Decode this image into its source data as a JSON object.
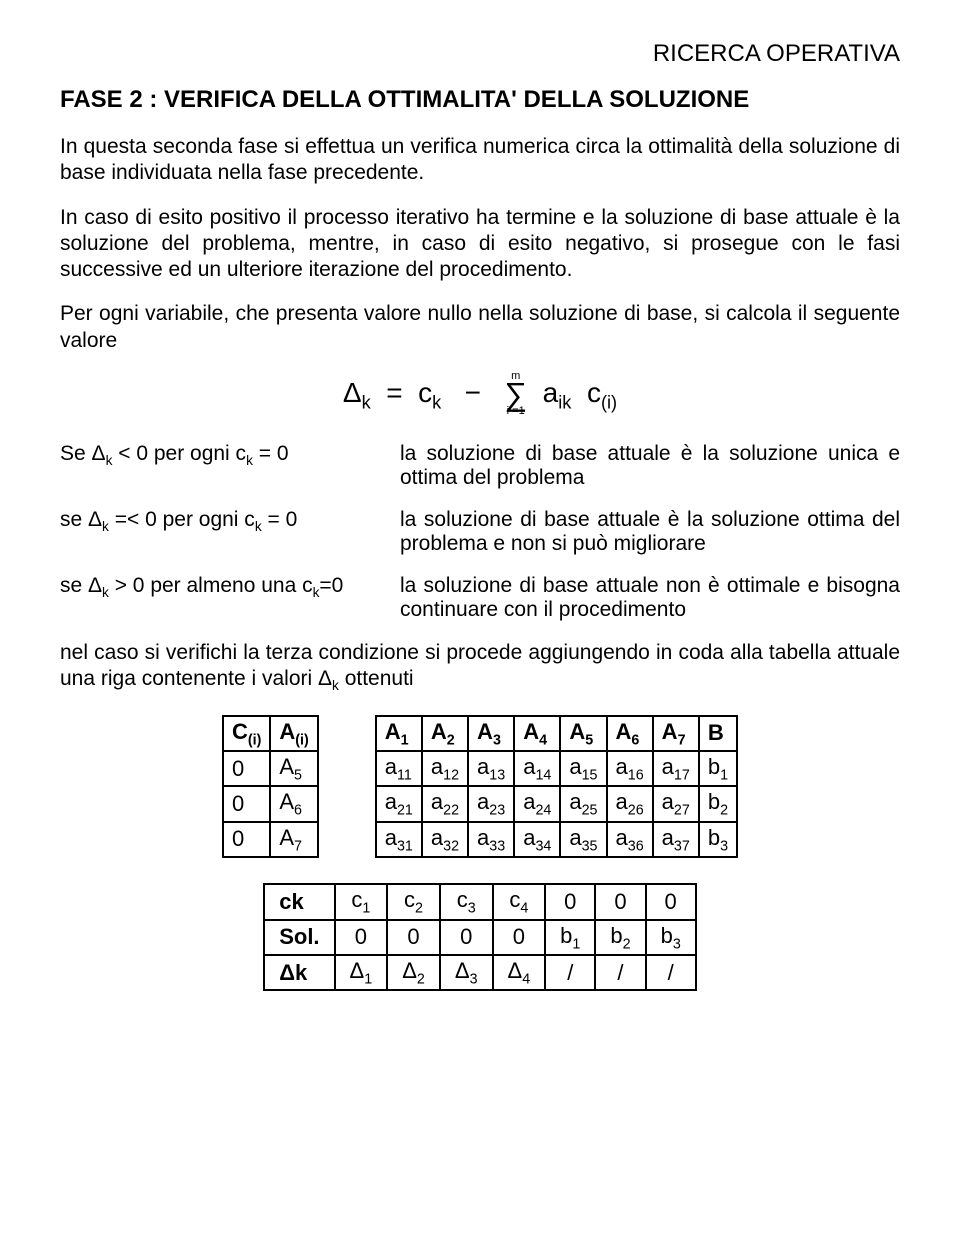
{
  "header": "RICERCA  OPERATIVA",
  "title": "FASE 2 :  VERIFICA  DELLA  OTTIMALITA'  DELLA   SOLUZIONE",
  "para1": "In questa seconda fase si effettua un verifica numerica circa la ottimalità della soluzione di base individuata nella fase precedente.",
  "para2": "In caso di esito positivo il processo iterativo ha termine e la soluzione di base attuale è la soluzione del problema, mentre, in caso di esito negativo, si prosegue con le fasi successive ed un ulteriore iterazione del procedimento.",
  "para3": "Per ogni variabile, che presenta valore nullo nella soluzione di base, si calcola il seguente valore",
  "formula": {
    "lhs": "Δ",
    "lhs_sub": "k",
    "eq": "=",
    "c": "c",
    "c_sub": "k",
    "minus": "−",
    "sum_top": "m",
    "sum_bot": "i =1",
    "a": "a",
    "a_sub": "ik",
    "ci": "c",
    "ci_sub": "(i)"
  },
  "cond1": {
    "left_pre": "Se   Δ",
    "left_sub": "k",
    "left_mid": " < 0   per  ogni  c",
    "left_sub2": "k",
    "left_post": " = 0",
    "right": "la soluzione di base  attuale  è  la soluzione unica e ottima del problema"
  },
  "cond2": {
    "left_pre": "se   Δ",
    "left_sub": "k",
    "left_mid": " =< 0  per ogni  c",
    "left_sub2": "k",
    "left_post": " = 0",
    "right": "la soluzione di base  attuale  è  la soluzione ottima del problema e non si può migliorare"
  },
  "cond3": {
    "left_pre": "se  Δ",
    "left_sub": "k",
    "left_mid": " > 0  per almeno una c",
    "left_sub2": "k",
    "left_post": "=0",
    "right": "la soluzione di base attuale non è ottimale e bisogna continuare con il procedimento"
  },
  "para4_pre": "nel caso si verifichi la terza condizione si procede aggiungendo in coda alla tabella attuale una riga contenente i valori Δ",
  "para4_sub": "k",
  "para4_post": " ottenuti",
  "table1": {
    "headers": [
      "C(i)",
      "A(i)",
      "A1",
      "A2",
      "A3",
      "A4",
      "A5",
      "A6",
      "A7",
      "B"
    ],
    "rows": [
      [
        "0",
        "A5",
        "a11",
        "a12",
        "a13",
        "a14",
        "a15",
        "a16",
        "a17",
        "b1"
      ],
      [
        "0",
        "A6",
        "a21",
        "a22",
        "a23",
        "a24",
        "a25",
        "a26",
        "a27",
        "b2"
      ],
      [
        "0",
        "A7",
        "a31",
        "a32",
        "a33",
        "a34",
        "a35",
        "a36",
        "a37",
        "b3"
      ]
    ]
  },
  "table2": {
    "rows": [
      [
        "ck",
        "c1",
        "c2",
        "c3",
        "c4",
        "0",
        "0",
        "0"
      ],
      [
        "Sol.",
        "0",
        "0",
        "0",
        "0",
        "b1",
        "b2",
        "b3"
      ],
      [
        "Δk",
        "Δ1",
        "Δ2",
        "Δ3",
        "Δ4",
        "/",
        "/",
        "/"
      ]
    ]
  }
}
